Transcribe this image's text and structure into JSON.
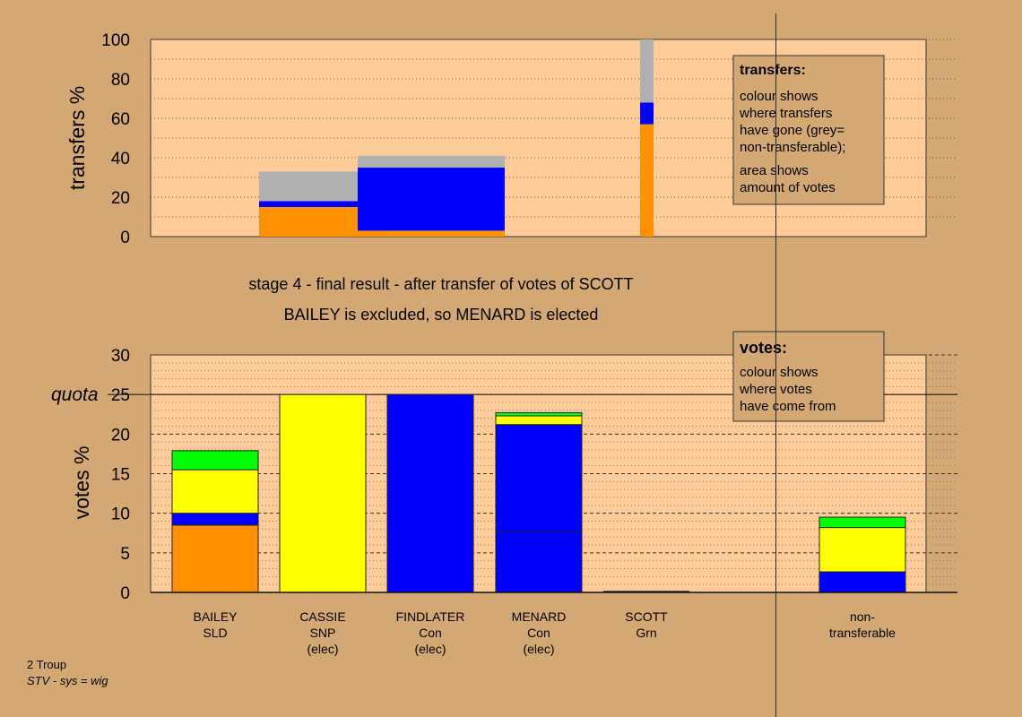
{
  "colors": {
    "background": "#d4a874",
    "plot_bg": "#ffcc99",
    "orange": "#ff9100",
    "blue": "#0000ff",
    "yellow": "#ffff00",
    "green": "#00ff00",
    "grey": "#b0b0b0"
  },
  "chart_data": [
    {
      "type": "bar",
      "name": "transfers",
      "ylabel": "transfers %",
      "ylim": [
        0,
        100
      ],
      "yticks": [
        0,
        20,
        40,
        60,
        80,
        100
      ],
      "legend_box": {
        "title": "transfers:",
        "lines": [
          "colour shows",
          "where transfers",
          "have gone (grey=",
          "non-transferable);",
          "area shows",
          "amount of votes"
        ]
      },
      "bars": [
        {
          "from": "SCOTT",
          "segments": [
            {
              "color": "orange",
              "from_pct": 0,
              "to_pct": 15
            },
            {
              "color": "blue",
              "from_pct": 15,
              "to_pct": 18
            },
            {
              "color": "grey",
              "from_pct": 18,
              "to_pct": 33
            }
          ]
        },
        {
          "from": "SCOTT",
          "segments": [
            {
              "color": "orange",
              "from_pct": 0,
              "to_pct": 3
            },
            {
              "color": "blue",
              "from_pct": 3,
              "to_pct": 35
            },
            {
              "color": "grey",
              "from_pct": 35,
              "to_pct": 41
            }
          ]
        },
        {
          "from": "SCOTT",
          "segments": [
            {
              "color": "orange",
              "from_pct": 0,
              "to_pct": 57
            },
            {
              "color": "blue",
              "from_pct": 57,
              "to_pct": 68
            },
            {
              "color": "grey",
              "from_pct": 68,
              "to_pct": 100
            }
          ]
        }
      ]
    },
    {
      "type": "bar",
      "name": "votes",
      "ylabel": "votes %",
      "ylim": [
        0,
        30
      ],
      "yticks": [
        0,
        5,
        10,
        15,
        20,
        25,
        30
      ],
      "quota": 25,
      "quota_label": "quota",
      "legend_box": {
        "title": "votes:",
        "lines": [
          "colour shows",
          "where votes",
          "have come from"
        ]
      },
      "categories": [
        {
          "lines": [
            "BAILEY",
            "SLD",
            ""
          ],
          "segments": [
            {
              "color": "orange",
              "value": 8.5
            },
            {
              "color": "blue",
              "value": 1.5
            },
            {
              "color": "yellow",
              "value": 5.5
            },
            {
              "color": "green",
              "value": 2.4
            }
          ]
        },
        {
          "lines": [
            "CASSIE",
            "SNP",
            "(elec)"
          ],
          "segments": [
            {
              "color": "yellow",
              "value": 25
            }
          ]
        },
        {
          "lines": [
            "FINDLATER",
            "Con",
            "(elec)"
          ],
          "segments": [
            {
              "color": "blue",
              "value": 25
            }
          ]
        },
        {
          "lines": [
            "MENARD",
            "Con",
            "(elec)"
          ],
          "segments": [
            {
              "color": "blue",
              "value": 7.7
            },
            {
              "color": "blue",
              "value": 13.5
            },
            {
              "color": "yellow",
              "value": 1.1
            },
            {
              "color": "green",
              "value": 0.4
            }
          ]
        },
        {
          "lines": [
            "SCOTT",
            "Grn",
            ""
          ],
          "segments": []
        },
        {
          "lines": [
            "non-",
            "transferable",
            ""
          ],
          "segments": [
            {
              "color": "blue",
              "value": 2.6
            },
            {
              "color": "yellow",
              "value": 5.6
            },
            {
              "color": "green",
              "value": 1.3
            }
          ]
        }
      ]
    }
  ],
  "stage_title": "stage 4 - final result - after transfer of votes of SCOTT",
  "stage_subtitle": "BAILEY is excluded, so MENARD is elected",
  "footer": {
    "line1": "2 Troup",
    "line2": "STV - sys = wig"
  }
}
